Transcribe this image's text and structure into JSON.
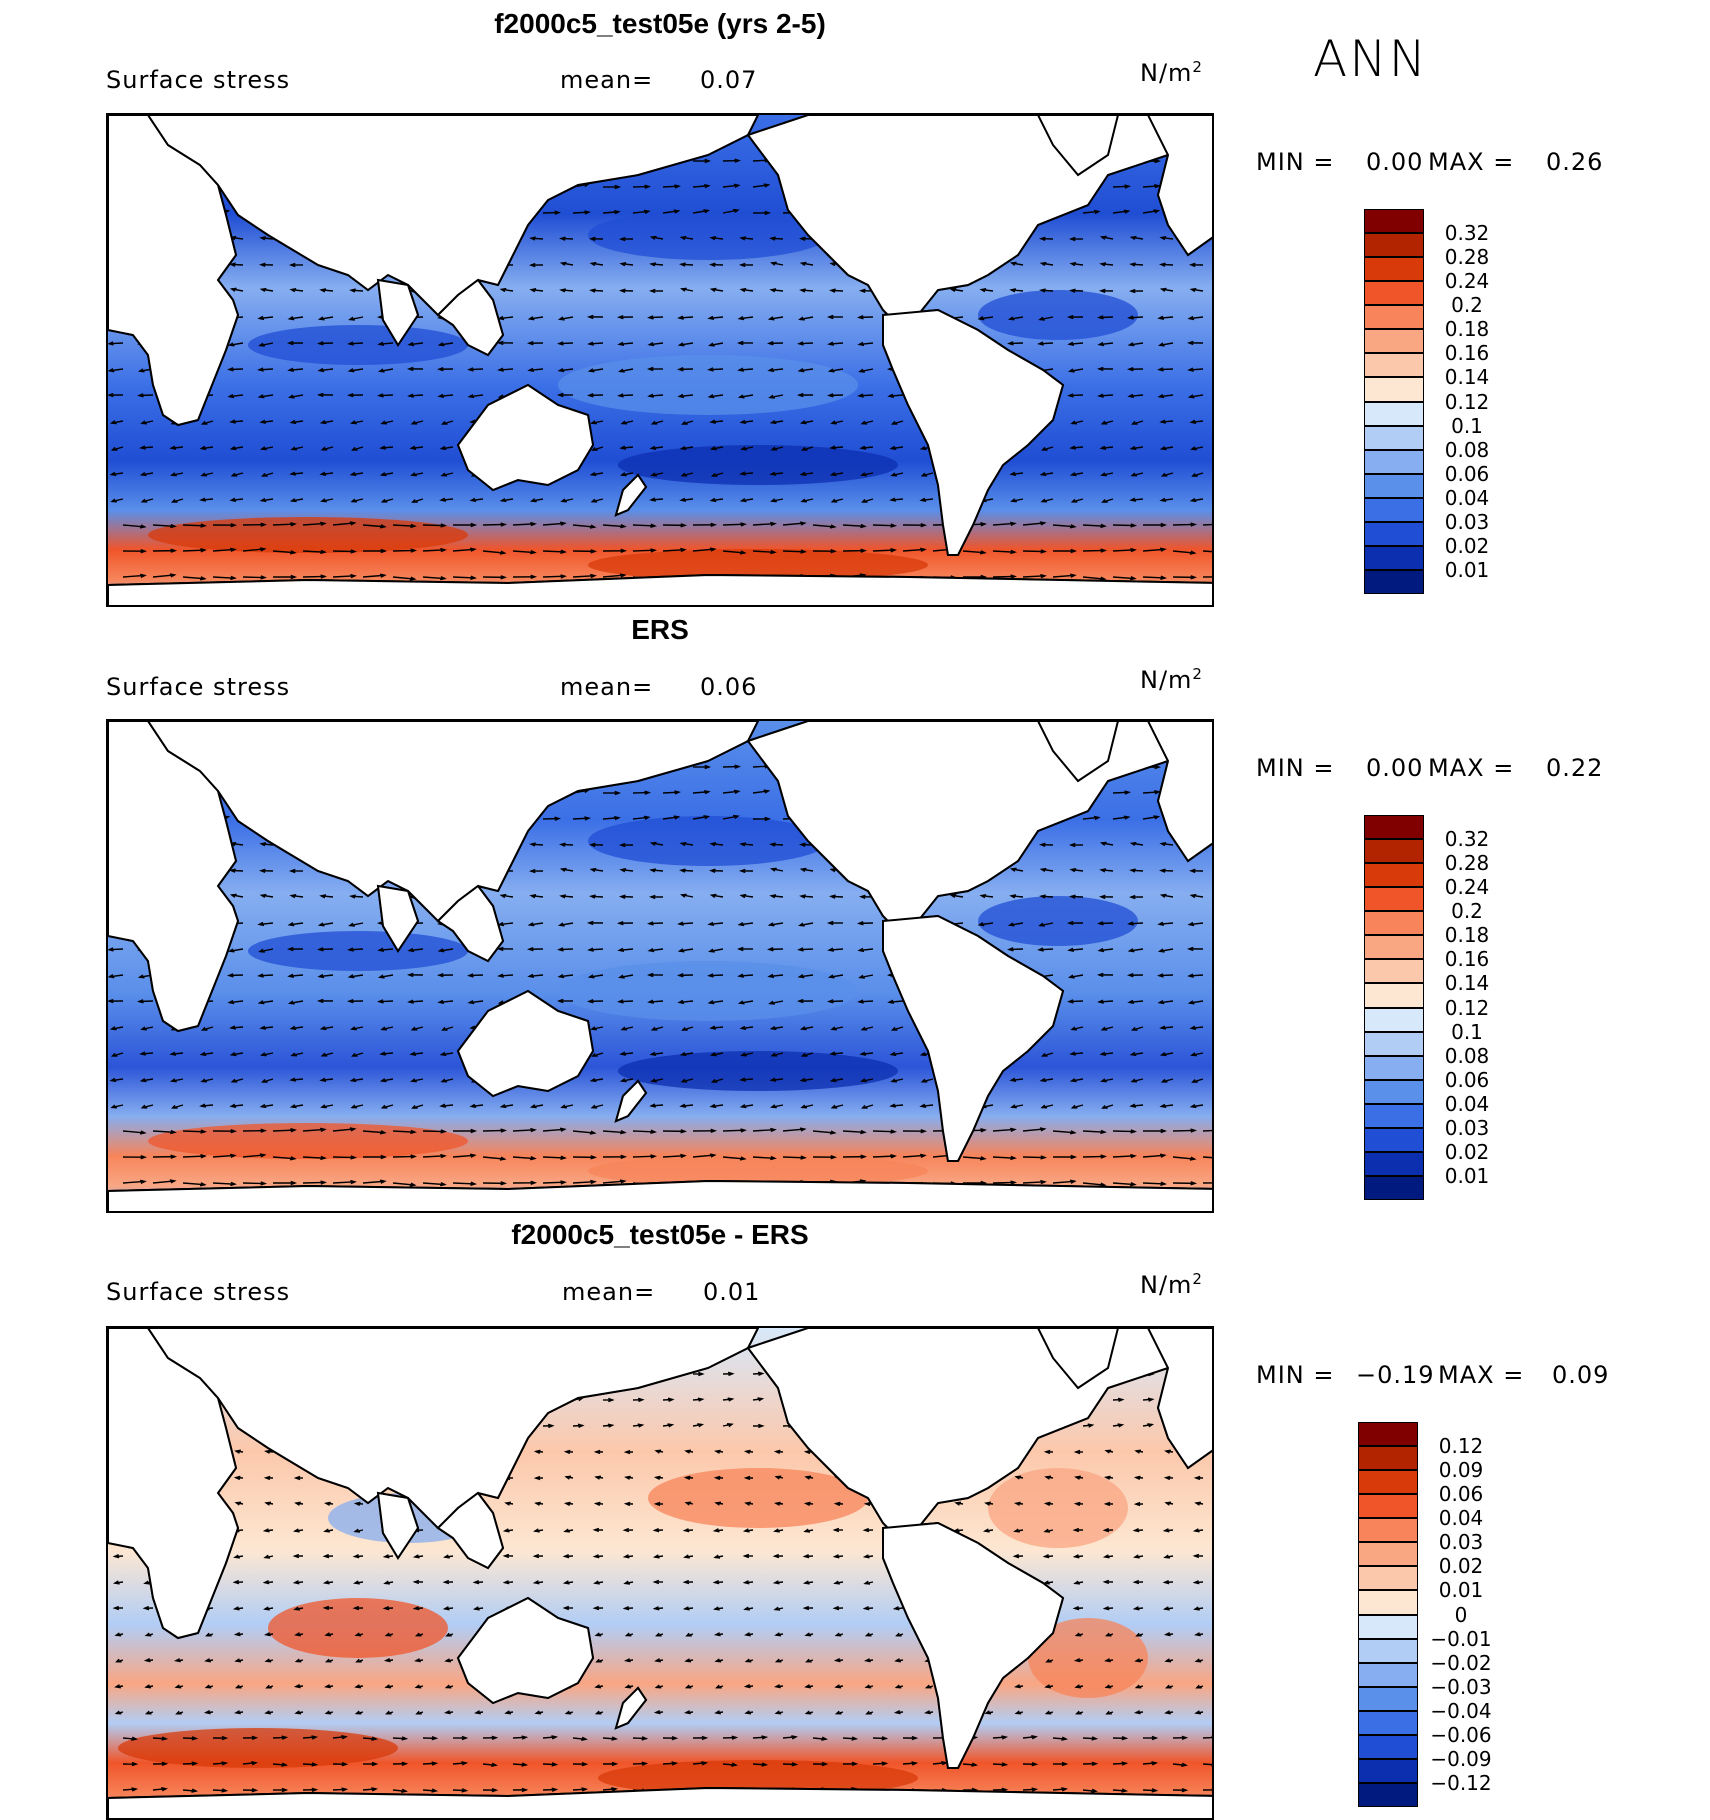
{
  "season": "ANN",
  "panels": [
    {
      "title": "f2000c5_test05e (yrs 2-5)",
      "variable": "Surface stress",
      "mean_label": "mean=",
      "mean_value": "0.07",
      "units": "N/m",
      "units_exp": "2",
      "min_label": "MIN =",
      "min_value": "0.00",
      "max_label": "MAX =",
      "max_value": "0.26",
      "colorbar": {
        "labels": [
          "0.32",
          "0.28",
          "0.24",
          "0.2",
          "0.18",
          "0.16",
          "0.14",
          "0.12",
          "0.1",
          "0.08",
          "0.06",
          "0.04",
          "0.03",
          "0.02",
          "0.01"
        ],
        "colors": [
          "#800000",
          "#b22400",
          "#d83a0a",
          "#f0552a",
          "#f7845a",
          "#f9a683",
          "#fcc8ab",
          "#fde7d2",
          "#d7e8fa",
          "#b1cdf5",
          "#86aef0",
          "#5a8fea",
          "#3b6fe6",
          "#204ed4",
          "#0c2fb0",
          "#001a80"
        ]
      }
    },
    {
      "title": "ERS",
      "variable": "Surface stress",
      "mean_label": "mean=",
      "mean_value": "0.06",
      "units": "N/m",
      "units_exp": "2",
      "min_label": "MIN =",
      "min_value": "0.00",
      "max_label": "MAX =",
      "max_value": "0.22",
      "colorbar": {
        "labels": [
          "0.32",
          "0.28",
          "0.24",
          "0.2",
          "0.18",
          "0.16",
          "0.14",
          "0.12",
          "0.1",
          "0.08",
          "0.06",
          "0.04",
          "0.03",
          "0.02",
          "0.01"
        ],
        "colors": [
          "#800000",
          "#b22400",
          "#d83a0a",
          "#f0552a",
          "#f7845a",
          "#f9a683",
          "#fcc8ab",
          "#fde7d2",
          "#d7e8fa",
          "#b1cdf5",
          "#86aef0",
          "#5a8fea",
          "#3b6fe6",
          "#204ed4",
          "#0c2fb0",
          "#001a80"
        ]
      }
    },
    {
      "title": "f2000c5_test05e - ERS",
      "variable": "Surface stress",
      "mean_label": "mean=",
      "mean_value": "0.01",
      "units": "N/m",
      "units_exp": "2",
      "min_label": "MIN =",
      "min_value": "−0.19",
      "max_label": "MAX =",
      "max_value": "0.09",
      "colorbar": {
        "labels": [
          "0.12",
          "0.09",
          "0.06",
          "0.04",
          "0.03",
          "0.02",
          "0.01",
          "0",
          "−0.01",
          "−0.02",
          "−0.03",
          "−0.04",
          "−0.06",
          "−0.09",
          "−0.12"
        ],
        "colors": [
          "#800000",
          "#b22400",
          "#d83a0a",
          "#f0552a",
          "#f7845a",
          "#f9a683",
          "#fcc8ab",
          "#fde7d2",
          "#d7e8fa",
          "#b1cdf5",
          "#86aef0",
          "#5a8fea",
          "#3b6fe6",
          "#204ed4",
          "#0c2fb0",
          "#001a80"
        ]
      }
    }
  ],
  "colors": {
    "ocean_low": "#2c55d8",
    "ocean_mid": "#86aef0",
    "storm_track": "#e8603a",
    "land": "#ffffff",
    "coast": "#000000"
  }
}
